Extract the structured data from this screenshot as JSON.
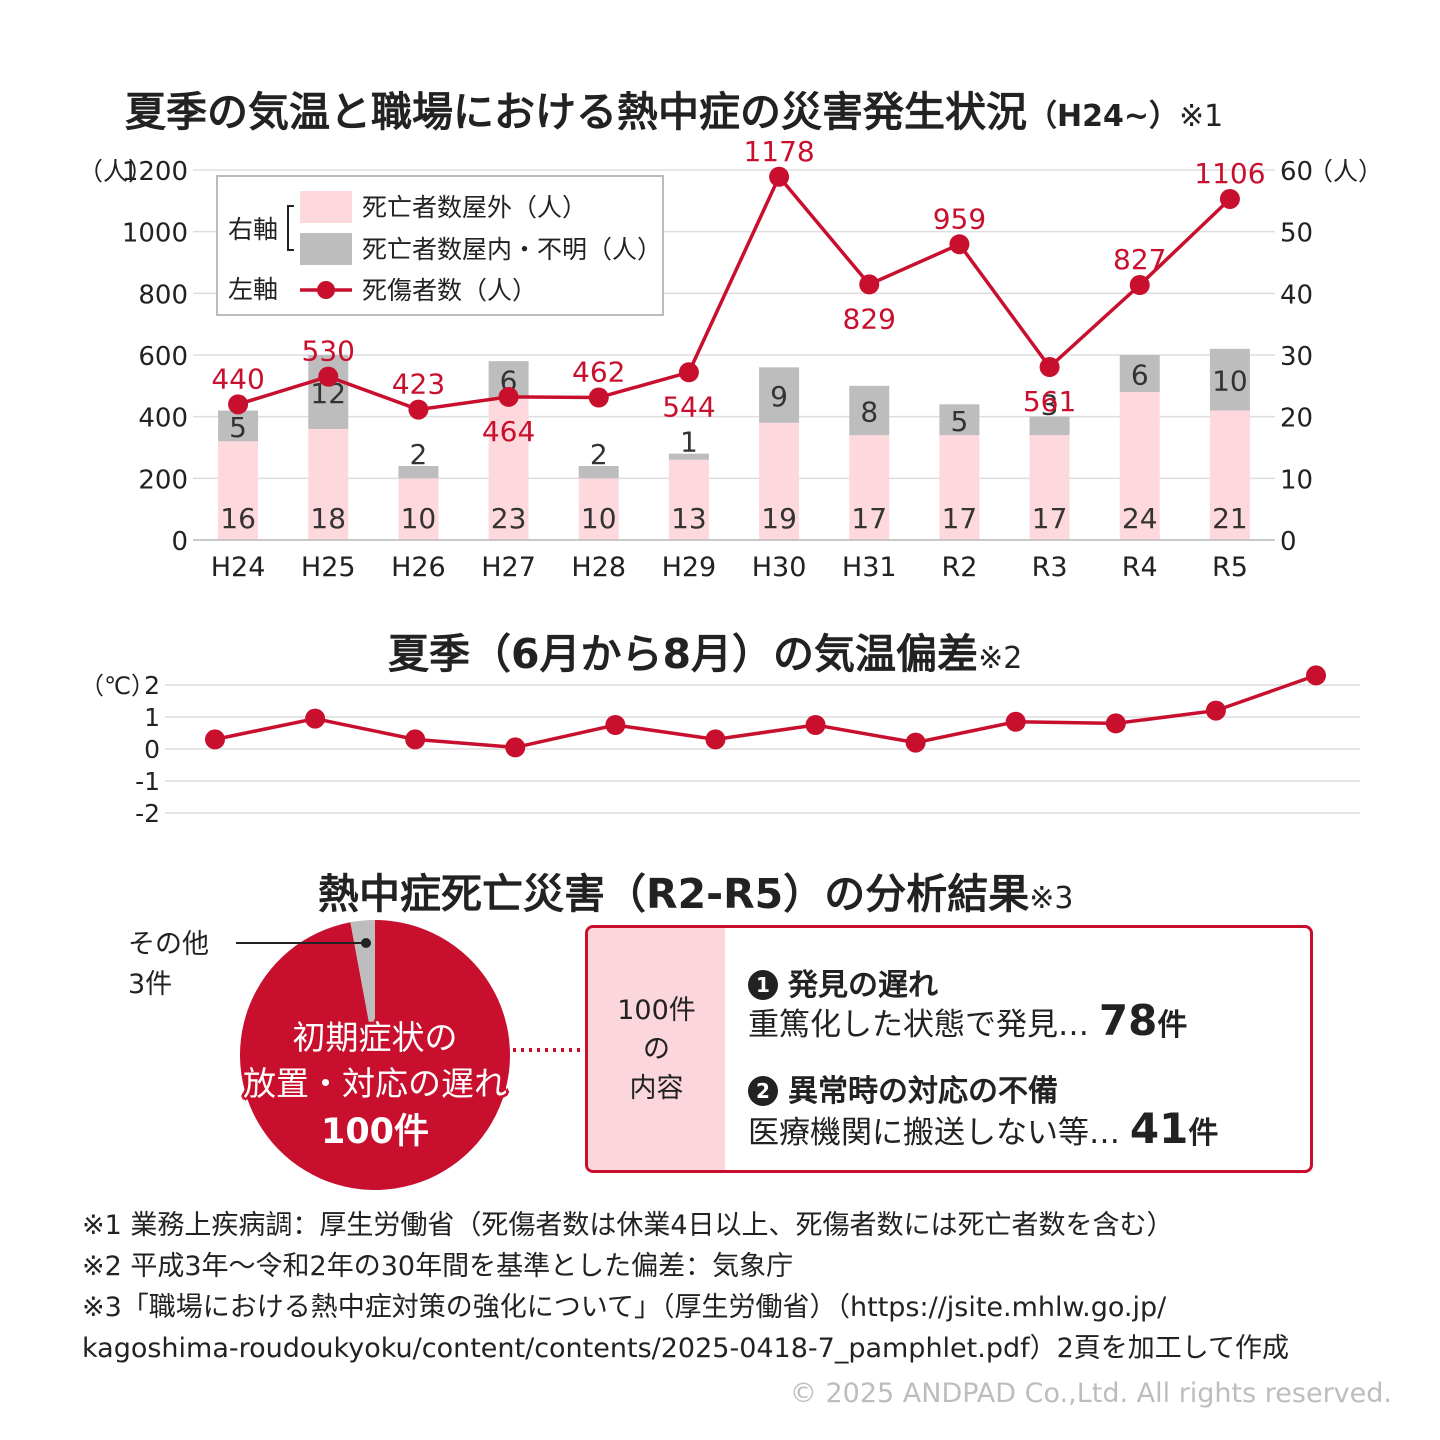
{
  "main_title": {
    "text": "夏季の気温と職場における熱中症の災害発生状況",
    "sub": "（H24~）",
    "note": "※1"
  },
  "colors": {
    "red": "#c8102e",
    "pink": "#fdd9dd",
    "gray": "#bdbdbd",
    "grid": "#dddddd"
  },
  "chart_data": [
    {
      "type": "bar",
      "categories": [
        "H24",
        "H25",
        "H26",
        "H27",
        "H28",
        "H29",
        "H30",
        "H31",
        "R2",
        "R3",
        "R4",
        "R5"
      ],
      "left_axis": {
        "label": "（人）",
        "ticks": [
          "0",
          "200",
          "400",
          "600",
          "800",
          "1000",
          "1200"
        ],
        "range": [
          0,
          1200
        ]
      },
      "right_axis": {
        "label": "（人）",
        "ticks": [
          "0",
          "10",
          "20",
          "30",
          "40",
          "50",
          "60"
        ],
        "range": [
          0,
          60
        ]
      },
      "legend": {
        "right_axis_label": "右軸",
        "left_axis_label": "左軸",
        "items": [
          "死亡者数屋外（人）",
          "死亡者数屋内・不明（人）",
          "死傷者数（人）"
        ]
      },
      "series": [
        {
          "name": "死亡者数屋外（人）",
          "axis": "right",
          "values": [
            16,
            18,
            10,
            23,
            10,
            13,
            19,
            17,
            17,
            17,
            24,
            21
          ]
        },
        {
          "name": "死亡者数屋内・不明（人）",
          "axis": "right",
          "values": [
            5,
            12,
            2,
            6,
            2,
            1,
            9,
            8,
            5,
            3,
            6,
            10
          ]
        },
        {
          "name": "死傷者数（人）",
          "axis": "left",
          "type": "line",
          "values": [
            440,
            530,
            423,
            464,
            462,
            544,
            1178,
            829,
            959,
            561,
            827,
            1106
          ]
        }
      ],
      "grid": true
    },
    {
      "type": "line",
      "title": "夏季（6月から8月）の気温偏差",
      "note": "※2",
      "y_axis": {
        "label": "（℃）",
        "ticks": [
          "2",
          "1",
          "0",
          "-1",
          "-2"
        ],
        "range": [
          -2,
          2
        ]
      },
      "series": [
        {
          "values": [
            0.3,
            0.95,
            0.3,
            0.05,
            0.75,
            0.3,
            0.75,
            0.2,
            0.85,
            0.8,
            1.2,
            2.3
          ]
        }
      ],
      "grid": true
    },
    {
      "type": "pie",
      "title": "熱中症死亡災害（R2-R5）の分析結果",
      "note": "※3",
      "slices": [
        {
          "label": "初期症状の放置・対応の遅れ",
          "value": 100,
          "display": [
            "初期症状の",
            "放置・対応の遅れ",
            "100件"
          ]
        },
        {
          "label": "その他",
          "value": 3,
          "display": [
            "その他",
            "3件"
          ]
        }
      ]
    }
  ],
  "breakdown": {
    "header": [
      "100件",
      "の",
      "内容"
    ],
    "items": [
      {
        "badge": "1",
        "heading": "発見の遅れ",
        "desc": "重篤化した状態で発見…",
        "count": "78",
        "unit": "件"
      },
      {
        "badge": "2",
        "heading": "異常時の対応の不備",
        "desc": "医療機関に搬送しない等…",
        "count": "41",
        "unit": "件"
      }
    ]
  },
  "notes": [
    "※1 業務上疾病調：厚生労働省（死傷者数は休業4日以上、死傷者数には死亡者数を含む）",
    "※2 平成3年～令和2年の30年間を基準とした偏差：気象庁",
    "※3「職場における熱中症対策の強化について」（厚生労働省）（https://jsite.mhlw.go.jp/",
    "kagoshima-roudoukyoku/content/contents/2025-0418-7_pamphlet.pdf）2頁を加工して作成"
  ],
  "copyright": "© 2025 ANDPAD Co.,Ltd. All rights reserved."
}
